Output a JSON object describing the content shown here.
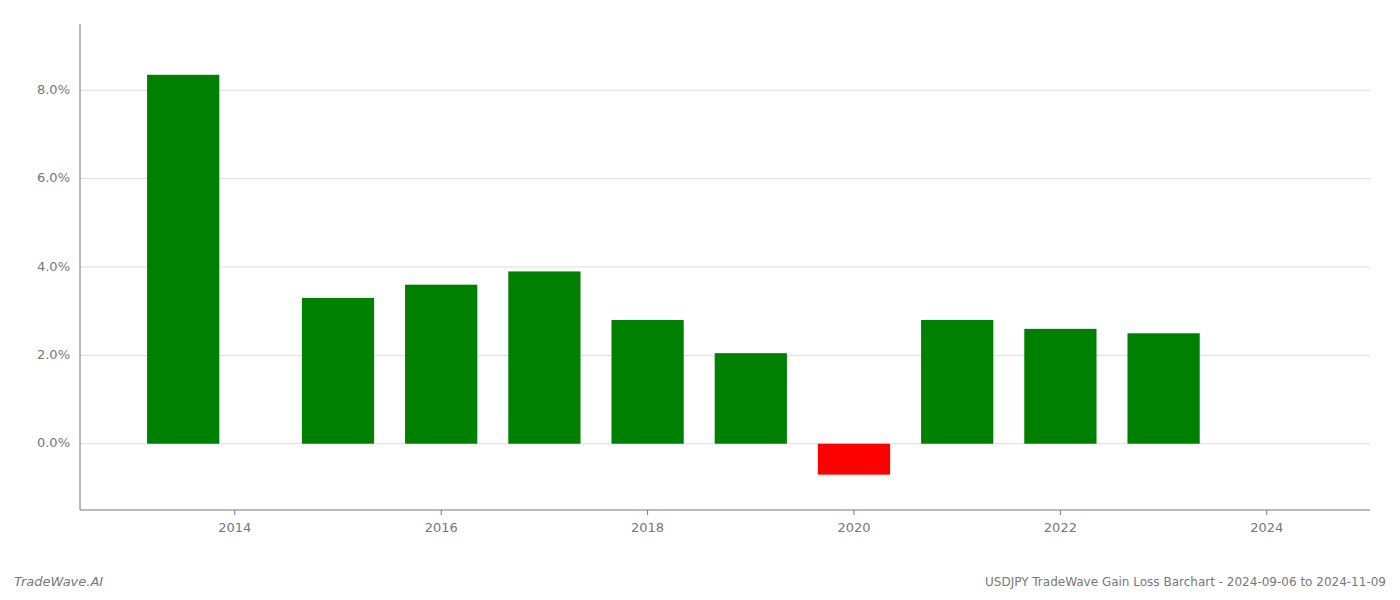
{
  "chart_data": {
    "type": "bar",
    "title": "USDJPY TradeWave Gain Loss Barchart - 2024-09-06 to 2024-11-09",
    "annotations": [
      "TradeWave.AI"
    ],
    "x": [
      2013.5,
      2015,
      2016,
      2017,
      2018,
      2019,
      2020,
      2021,
      2022,
      2023
    ],
    "values": [
      0.0835,
      0.033,
      0.036,
      0.039,
      0.028,
      0.0205,
      -0.007,
      0.028,
      0.026,
      0.025
    ],
    "colors": [
      "#008000",
      "#008000",
      "#008000",
      "#008000",
      "#008000",
      "#008000",
      "#ff0000",
      "#008000",
      "#008000",
      "#008000"
    ],
    "xlim": [
      2012.5,
      2025.0
    ],
    "xticks": [
      2014,
      2016,
      2018,
      2020,
      2022,
      2024
    ],
    "ylim": [
      -0.015,
      0.095
    ],
    "yticks": [
      {
        "value": 0.0,
        "label": "0.0%"
      },
      {
        "value": 0.02,
        "label": "2.0%"
      },
      {
        "value": 0.04,
        "label": "4.0%"
      },
      {
        "value": 0.06,
        "label": "6.0%"
      },
      {
        "value": 0.08,
        "label": "8.0%"
      }
    ],
    "grid": true
  }
}
